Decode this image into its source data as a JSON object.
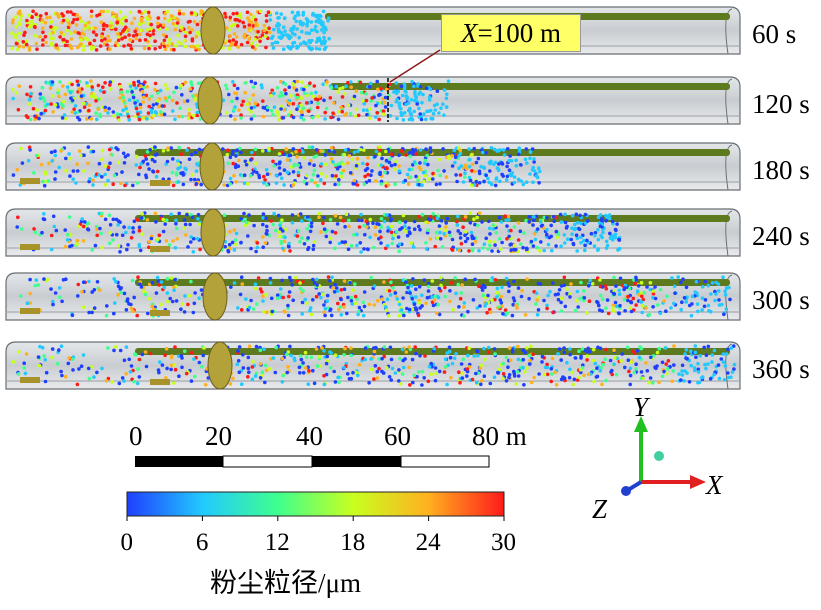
{
  "panels": [
    {
      "time": "60 s"
    },
    {
      "time": "120 s"
    },
    {
      "time": "180 s"
    },
    {
      "time": "240 s"
    },
    {
      "time": "300 s"
    },
    {
      "time": "360 s"
    }
  ],
  "callout": {
    "var": "X",
    "rest": "=100 m"
  },
  "scale_bar": {
    "ticks": [
      "0",
      "20",
      "40",
      "60",
      "80 m"
    ]
  },
  "colorbar": {
    "ticks": [
      "0",
      "6",
      "12",
      "18",
      "24",
      "30"
    ],
    "title": "粉尘粒径/μm",
    "min": 0,
    "max": 30,
    "colors": [
      "#1f3fff",
      "#22c9ff",
      "#3fff8f",
      "#c8ff1f",
      "#ffb020",
      "#ff1a1a"
    ]
  },
  "axes": {
    "x": "X",
    "y": "Y",
    "z": "Z"
  },
  "colors": {
    "tunnel_fill": "#d4d8dc",
    "duct": "#5e7a1e",
    "ring": "#b3a23a",
    "x_axis": "#e02020",
    "y_axis": "#20c020",
    "z_axis": "#2040d0"
  }
}
